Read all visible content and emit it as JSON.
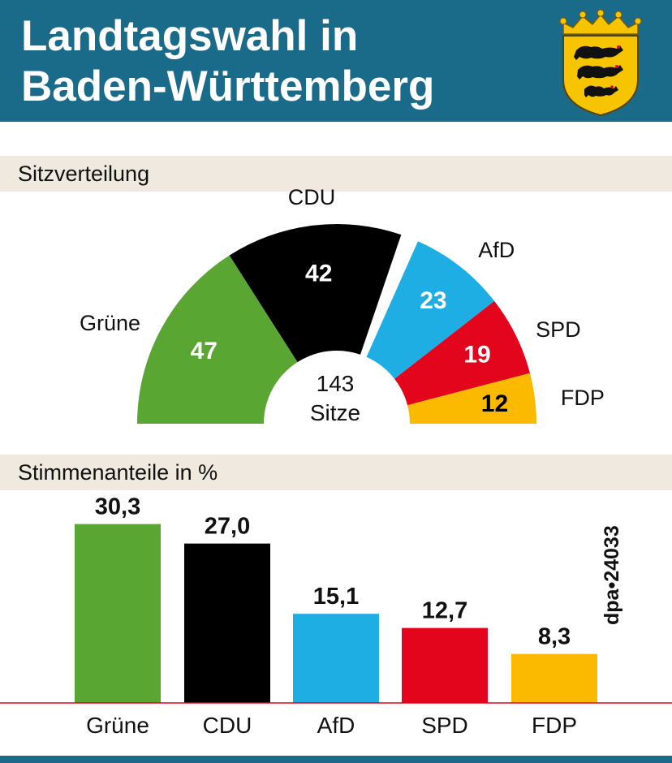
{
  "header": {
    "title_line1": "Landtagswahl in",
    "title_line2": "Baden-Württemberg",
    "crest_icon": "baden-wuerttemberg-coat-of-arms-icon",
    "background_color": "#1a6b8a"
  },
  "sections": {
    "seats_title": "Sitzverteilung",
    "votes_title": "Stimmenanteile in %"
  },
  "credit": "dpa•24033",
  "chart_data": [
    {
      "type": "pie",
      "subtype": "parliament-half-donut",
      "title": "Sitzverteilung",
      "center_label_line1": "143",
      "center_label_line2": "Sitze",
      "total": 143,
      "categories": [
        "Grüne",
        "CDU",
        "AfD",
        "SPD",
        "FDP"
      ],
      "values": [
        47,
        42,
        23,
        19,
        12
      ],
      "value_labels": [
        "47",
        "42",
        "23",
        "19",
        "12"
      ],
      "colors": [
        "#5aa632",
        "#000000",
        "#1faee3",
        "#e3051b",
        "#fbb900"
      ],
      "value_label_colors": [
        "#ffffff",
        "#ffffff",
        "#ffffff",
        "#ffffff",
        "#000000"
      ],
      "gap_after_category": "CDU"
    },
    {
      "type": "bar",
      "title": "Stimmenanteile in %",
      "categories": [
        "Grüne",
        "CDU",
        "AfD",
        "SPD",
        "FDP"
      ],
      "values": [
        30.3,
        27.0,
        15.1,
        12.7,
        8.3
      ],
      "value_labels": [
        "30,3",
        "27,0",
        "15,1",
        "12,7",
        "8,3"
      ],
      "colors": [
        "#5aa632",
        "#000000",
        "#1faee3",
        "#e3051b",
        "#fbb900"
      ],
      "ylim": [
        0,
        33
      ],
      "baseline_color": "#e3051b"
    }
  ]
}
